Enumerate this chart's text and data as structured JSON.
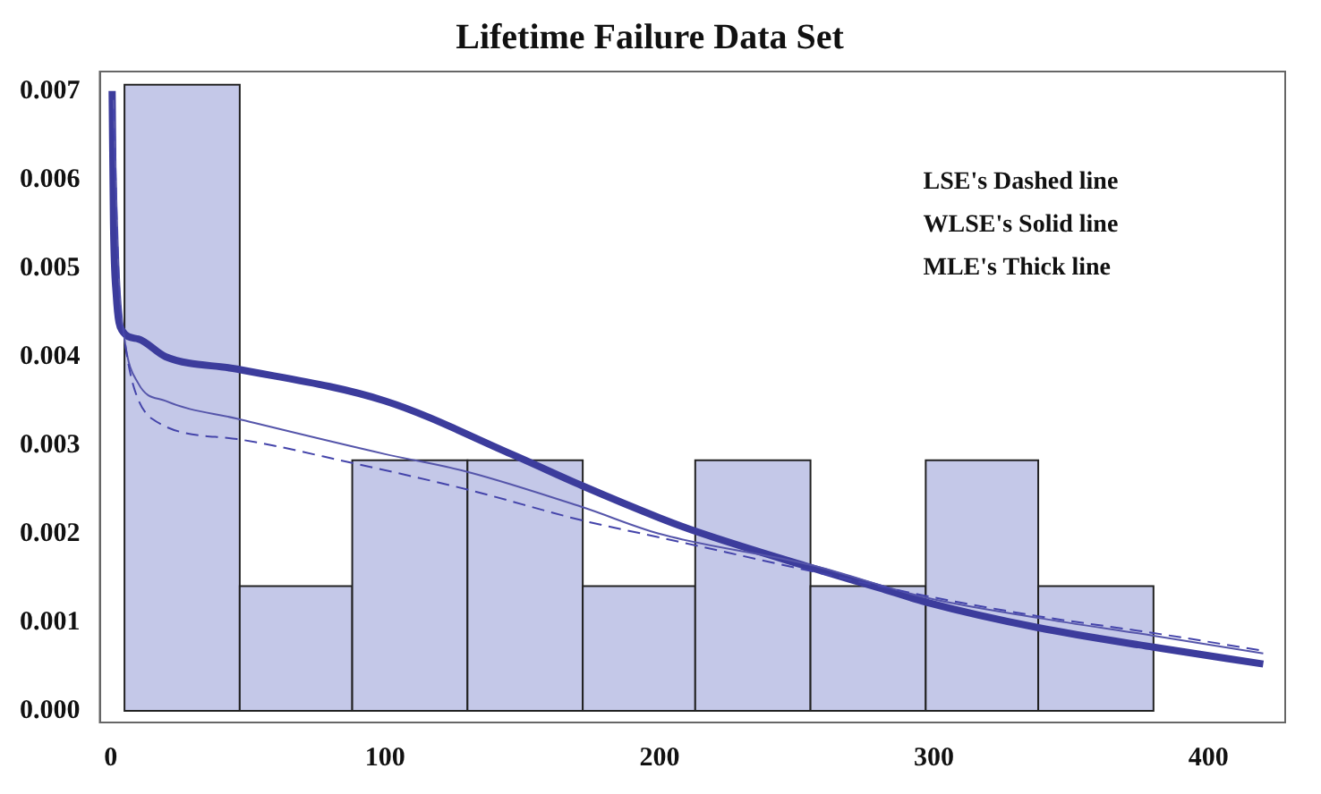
{
  "chart_data": {
    "type": "histogram",
    "title": "Lifetime Failure Data Set",
    "bins": [
      5,
      47,
      88,
      130,
      172,
      213,
      255,
      297,
      338,
      380
    ],
    "values": [
      0.00707,
      0.00141,
      0.00283,
      0.00283,
      0.00141,
      0.00283,
      0.00141,
      0.00283,
      0.00141
    ],
    "color": "#c4c8e8",
    "series": [
      {
        "type": "line",
        "color": "#4444aa",
        "line_style": "dashed",
        "x": [
          1,
          3,
          5,
          8,
          15,
          46,
          88,
          130,
          172,
          200,
          255,
          297,
          338,
          380,
          420
        ],
        "values": [
          0.0068,
          0.0048,
          0.0042,
          0.0037,
          0.0033,
          0.00307,
          0.0028,
          0.0025,
          0.00215,
          0.00196,
          0.00158,
          0.0013,
          0.00107,
          0.00088,
          0.00068
        ]
      },
      {
        "type": "line",
        "color": "#5555aa",
        "line_style": "solid",
        "x": [
          1,
          3,
          5,
          10,
          20,
          46,
          100,
          130,
          172,
          200,
          255,
          297,
          338,
          380,
          420
        ],
        "values": [
          0.0069,
          0.0049,
          0.0042,
          0.0037,
          0.0035,
          0.0033,
          0.0029,
          0.0027,
          0.0023,
          0.002,
          0.00165,
          0.00128,
          0.00105,
          0.00085,
          0.00065
        ]
      },
      {
        "type": "line",
        "color": "#3c3c9c",
        "line_style": "solid",
        "x": [
          0.5,
          1,
          2,
          4,
          10,
          20,
          46,
          100,
          146,
          172,
          200,
          213,
          255,
          280,
          297,
          338,
          380,
          420
        ],
        "values": [
          0.007,
          0.0055,
          0.0047,
          0.0043,
          0.0042,
          0.004,
          0.00386,
          0.0035,
          0.0029,
          0.00254,
          0.00218,
          0.00203,
          0.00162,
          0.00139,
          0.00123,
          0.00094,
          0.00072,
          0.00053
        ]
      }
    ],
    "annotations": [
      "LSE's Dashed line",
      "WLSE's Solid line",
      "MLE's Thick line"
    ],
    "xlim": [
      -4,
      428
    ],
    "xticks": [
      0,
      100,
      200,
      300,
      400
    ],
    "ylim": [
      -0.00013,
      0.00722
    ],
    "yticks": [
      {
        "value": 0,
        "label": "0.000"
      },
      0.001,
      0.002,
      0.003,
      0.004,
      0.005,
      0.006,
      0.007
    ],
    "grid": false,
    "legend": false
  }
}
